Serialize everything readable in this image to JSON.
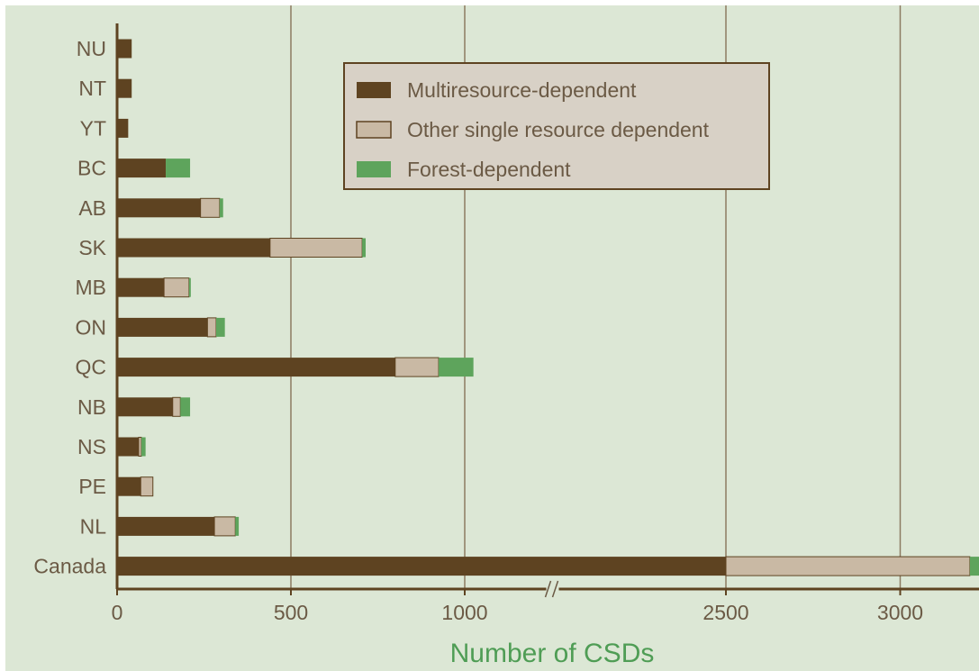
{
  "chart_data": {
    "type": "bar",
    "orientation": "horizontal",
    "stacked": true,
    "categories": [
      "NU",
      "NT",
      "YT",
      "BC",
      "AB",
      "SK",
      "MB",
      "ON",
      "QC",
      "NB",
      "NS",
      "PE",
      "NL",
      "Canada"
    ],
    "series": [
      {
        "name": "Multiresource-dependent",
        "color": "#5e4321",
        "values": [
          42,
          42,
          32,
          140,
          240,
          440,
          135,
          260,
          800,
          160,
          62,
          68,
          280,
          2500
        ]
      },
      {
        "name": "Other single resource dependent",
        "color": "#c9b9a4",
        "values": [
          0,
          0,
          0,
          0,
          55,
          265,
          72,
          25,
          125,
          22,
          8,
          35,
          60,
          700
        ]
      },
      {
        "name": "Forest-dependent",
        "color": "#5ea45c",
        "values": [
          0,
          0,
          0,
          70,
          10,
          10,
          5,
          25,
          100,
          28,
          12,
          0,
          10,
          260
        ]
      }
    ],
    "xlabel": "Number of CSDs",
    "xticks": [
      "0",
      "500",
      "1000",
      "2500",
      "3000"
    ],
    "axis_break": {
      "from": 1250,
      "to": 2000
    },
    "xlim": [
      0,
      3460
    ],
    "grid": true,
    "legend_position": "top-right",
    "legend": [
      "Multiresource-dependent",
      "Other single resource dependent",
      "Forest-dependent"
    ],
    "colors": {
      "background": "#dce7d5",
      "axis": "#5e4321",
      "gridline": "#8c7b62",
      "tick_text": "#6b5a45",
      "xlabel": "#4f9d55",
      "legend_bg": "#d8d1c6"
    }
  }
}
